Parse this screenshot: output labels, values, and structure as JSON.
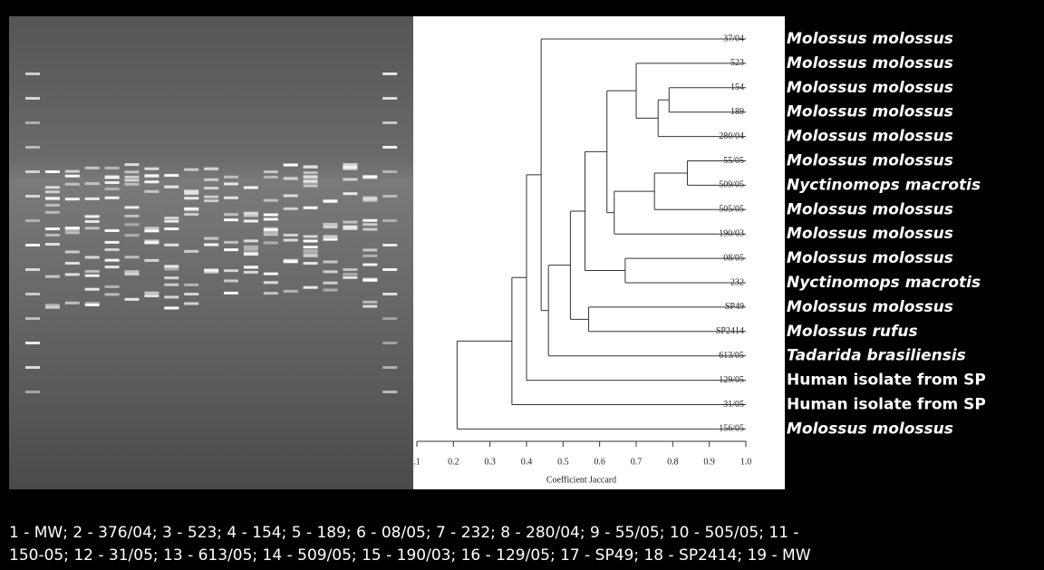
{
  "dendrogram": {
    "leaves": [
      "37/04",
      "523",
      "154",
      "189",
      "280/04",
      "55/05",
      "509/05",
      "505/05",
      "190/03",
      "08/05",
      "232",
      "SP49",
      "SP2414",
      "613/05",
      "129/05",
      "31/05",
      "156/05"
    ],
    "merges": [
      {
        "children": [
          2,
          3
        ],
        "height": 0.79
      },
      {
        "children": [
          17,
          4
        ],
        "height": 0.76
      },
      {
        "children": [
          1,
          18
        ],
        "height": 0.7
      },
      {
        "children": [
          5,
          6
        ],
        "height": 0.84
      },
      {
        "children": [
          20,
          7
        ],
        "height": 0.75
      },
      {
        "children": [
          21,
          8
        ],
        "height": 0.64
      },
      {
        "children": [
          19,
          22
        ],
        "height": 0.62
      },
      {
        "children": [
          9,
          10
        ],
        "height": 0.67
      },
      {
        "children": [
          23,
          24
        ],
        "height": 0.56
      },
      {
        "children": [
          11,
          12
        ],
        "height": 0.57
      },
      {
        "children": [
          25,
          26
        ],
        "height": 0.52
      },
      {
        "children": [
          27,
          13
        ],
        "height": 0.46
      },
      {
        "children": [
          0,
          28
        ],
        "height": 0.44
      },
      {
        "children": [
          29,
          14
        ],
        "height": 0.4
      },
      {
        "children": [
          30,
          15
        ],
        "height": 0.36
      },
      {
        "children": [
          31,
          16
        ],
        "height": 0.21
      }
    ],
    "xlim": [
      0.1,
      1.0
    ],
    "xticks": [
      {
        "value": 0.1,
        "label": ".1"
      },
      0.2,
      0.3,
      0.4,
      0.5,
      0.6,
      0.7,
      0.8,
      0.9,
      {
        "value": 1.0,
        "label": "1.0"
      }
    ],
    "xlabel": "Coefficient Jaccard"
  },
  "species": [
    "Molossus molossus",
    "Molossus molossus",
    "Molossus molossus",
    "Molossus molossus",
    "Molossus molossus",
    "Molossus molossus",
    "Nyctinomops macrotis",
    "Molossus molossus",
    "Molossus molossus",
    "Molossus molossus",
    "Nyctinomops macrotis",
    "Molossus molossus",
    "Molossus rufus",
    "Tadarida brasiliensis",
    "Human isolate from SP",
    "Human isolate from SP",
    "Molossus molossus"
  ],
  "caption": [
    "1 - MW; 2 - 376/04; 3 - 523; 4 - 154; 5 - 189; 6 - 08/05; 7 - 232; 8 - 280/04; 9 - 55/05; 10 - 505/05; 11 -",
    "150-05; 12 - 31/05; 13 - 613/05; 14 - 509/05; 15 - 190/03; 16 - 129/05; 17 - SP49; 18 - SP2414; 19 - MW"
  ]
}
